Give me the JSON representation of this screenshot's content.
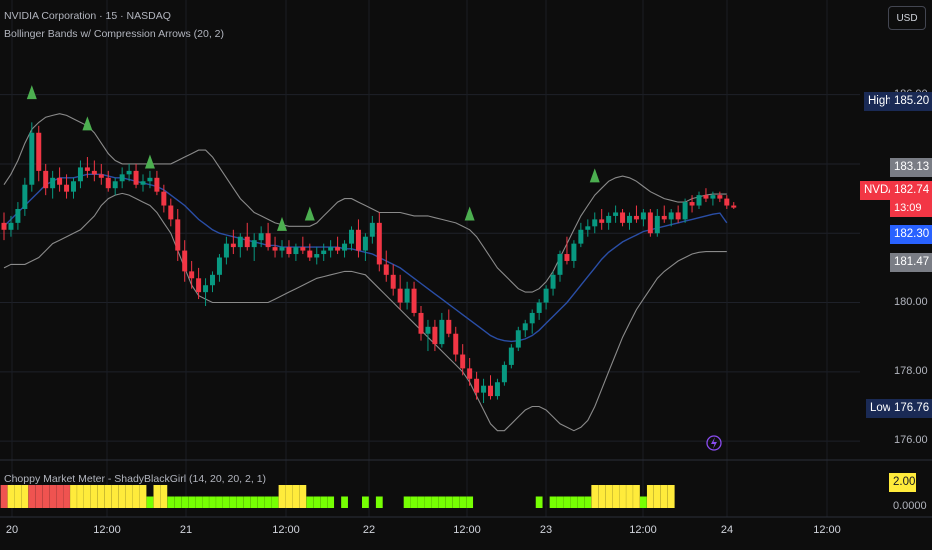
{
  "header": {
    "symbol_line": "NVIDIA Corporation · 15 · NASDAQ",
    "indicator_line": "Bollinger Bands w/ Compression Arrows (20, 2)",
    "currency": "USD",
    "subpane_title": "Choppy Market Meter - ShadyBlackGirl (14, 20, 20, 2, 1)"
  },
  "price_tags": {
    "high_label": "High",
    "high_value": "185.20",
    "low_label": "Low",
    "low_value": "176.76",
    "upper_band": "183.13",
    "symbol": "NVDA",
    "last_price": "182.74",
    "countdown": "13:09",
    "basis": "182.30",
    "lower_band": "181.47"
  },
  "subpane_value": "2.00",
  "subpane_zero": "0.0000",
  "colors": {
    "up": "#089981",
    "down": "#f23645",
    "basis": "#2a4ea6",
    "bands": "#8a8a8a",
    "arrow": "#4caf50",
    "chop_yellow": "#ffeb3b",
    "chop_green": "#76ff03",
    "chop_red": "#ef5350"
  },
  "chart_data": {
    "type": "candlestick",
    "y_axis": {
      "ticks": [
        "186.00",
        "184.00",
        "182.00",
        "180.00",
        "178.00",
        "176.00"
      ],
      "range": [
        175.6,
        187.0
      ]
    },
    "x_axis": {
      "ticks": [
        "20",
        "12:00",
        "21",
        "12:00",
        "22",
        "12:00",
        "23",
        "12:00",
        "24",
        "12:00"
      ]
    },
    "candles": [
      [
        182.3,
        182.6,
        181.8,
        182.1
      ],
      [
        182.1,
        182.5,
        181.9,
        182.3
      ],
      [
        182.3,
        182.9,
        182.1,
        182.7
      ],
      [
        182.7,
        183.6,
        182.5,
        183.4
      ],
      [
        183.4,
        185.2,
        183.2,
        184.9
      ],
      [
        184.9,
        185.1,
        183.5,
        183.8
      ],
      [
        183.8,
        184.0,
        183.1,
        183.3
      ],
      [
        183.3,
        183.8,
        183.0,
        183.6
      ],
      [
        183.6,
        183.9,
        183.2,
        183.4
      ],
      [
        183.4,
        183.7,
        183.0,
        183.2
      ],
      [
        183.2,
        183.6,
        183.0,
        183.5
      ],
      [
        183.5,
        184.1,
        183.3,
        183.9
      ],
      [
        183.9,
        184.2,
        183.6,
        183.8
      ],
      [
        183.8,
        184.1,
        183.5,
        183.7
      ],
      [
        183.7,
        184.0,
        183.4,
        183.6
      ],
      [
        183.6,
        183.8,
        183.2,
        183.3
      ],
      [
        183.3,
        183.6,
        183.1,
        183.5
      ],
      [
        183.5,
        183.9,
        183.3,
        183.7
      ],
      [
        183.7,
        184.0,
        183.5,
        183.8
      ],
      [
        183.8,
        184.0,
        183.3,
        183.4
      ],
      [
        183.4,
        183.7,
        183.2,
        183.5
      ],
      [
        183.5,
        183.8,
        183.3,
        183.6
      ],
      [
        183.6,
        183.8,
        183.1,
        183.2
      ],
      [
        183.2,
        183.4,
        182.6,
        182.8
      ],
      [
        182.8,
        183.0,
        182.2,
        182.4
      ],
      [
        182.4,
        182.7,
        181.2,
        181.5
      ],
      [
        181.5,
        181.8,
        180.6,
        180.9
      ],
      [
        180.9,
        181.2,
        180.4,
        180.7
      ],
      [
        180.7,
        181.0,
        180.1,
        180.3
      ],
      [
        180.3,
        180.7,
        179.9,
        180.5
      ],
      [
        180.5,
        180.9,
        180.3,
        180.8
      ],
      [
        180.8,
        181.4,
        180.6,
        181.3
      ],
      [
        181.3,
        181.9,
        181.1,
        181.7
      ],
      [
        181.7,
        182.1,
        181.4,
        181.6
      ],
      [
        181.6,
        182.0,
        181.3,
        181.9
      ],
      [
        181.9,
        182.3,
        181.5,
        181.6
      ],
      [
        181.6,
        182.0,
        181.2,
        181.8
      ],
      [
        181.8,
        182.2,
        181.6,
        182.0
      ],
      [
        182.0,
        182.3,
        181.5,
        181.6
      ],
      [
        181.6,
        181.9,
        181.3,
        181.5
      ],
      [
        181.5,
        181.8,
        181.3,
        181.6
      ],
      [
        181.6,
        181.8,
        181.3,
        181.4
      ],
      [
        181.4,
        181.7,
        181.2,
        181.6
      ],
      [
        181.6,
        181.9,
        181.4,
        181.5
      ],
      [
        181.5,
        181.7,
        181.2,
        181.3
      ],
      [
        181.3,
        181.6,
        181.1,
        181.4
      ],
      [
        181.4,
        181.7,
        181.2,
        181.5
      ],
      [
        181.5,
        181.8,
        181.3,
        181.6
      ],
      [
        181.6,
        181.9,
        181.4,
        181.5
      ],
      [
        181.5,
        181.8,
        181.3,
        181.7
      ],
      [
        181.7,
        182.2,
        181.5,
        182.1
      ],
      [
        182.1,
        182.4,
        181.3,
        181.5
      ],
      [
        181.5,
        182.0,
        181.2,
        181.9
      ],
      [
        181.9,
        182.5,
        181.7,
        182.3
      ],
      [
        182.3,
        182.6,
        180.9,
        181.1
      ],
      [
        181.1,
        181.5,
        180.6,
        180.8
      ],
      [
        180.8,
        181.1,
        180.2,
        180.4
      ],
      [
        180.4,
        180.8,
        179.8,
        180.0
      ],
      [
        180.0,
        180.6,
        179.8,
        180.4
      ],
      [
        180.4,
        180.6,
        179.6,
        179.7
      ],
      [
        179.7,
        179.9,
        178.9,
        179.1
      ],
      [
        179.1,
        179.5,
        178.6,
        179.3
      ],
      [
        179.3,
        179.5,
        178.6,
        178.8
      ],
      [
        178.8,
        179.7,
        178.7,
        179.5
      ],
      [
        179.5,
        179.8,
        179.0,
        179.1
      ],
      [
        179.1,
        179.3,
        178.3,
        178.5
      ],
      [
        178.5,
        178.8,
        177.9,
        178.1
      ],
      [
        178.1,
        178.4,
        177.6,
        177.8
      ],
      [
        177.8,
        178.0,
        177.2,
        177.4
      ],
      [
        177.4,
        177.8,
        177.1,
        177.6
      ],
      [
        177.6,
        177.9,
        177.2,
        177.3
      ],
      [
        177.3,
        177.8,
        177.2,
        177.7
      ],
      [
        177.7,
        178.3,
        177.6,
        178.2
      ],
      [
        178.2,
        178.8,
        178.1,
        178.7
      ],
      [
        178.7,
        179.3,
        178.6,
        179.2
      ],
      [
        179.2,
        179.5,
        179.0,
        179.4
      ],
      [
        179.4,
        179.8,
        179.1,
        179.7
      ],
      [
        179.7,
        180.1,
        179.5,
        180.0
      ],
      [
        180.0,
        180.5,
        179.8,
        180.4
      ],
      [
        180.4,
        180.9,
        180.2,
        180.8
      ],
      [
        180.8,
        181.5,
        180.6,
        181.4
      ],
      [
        181.4,
        181.9,
        181.1,
        181.2
      ],
      [
        181.2,
        181.8,
        181.0,
        181.7
      ],
      [
        181.7,
        182.3,
        181.6,
        182.1
      ],
      [
        182.1,
        182.4,
        181.9,
        182.2
      ],
      [
        182.2,
        182.6,
        182.0,
        182.4
      ],
      [
        182.4,
        182.7,
        182.1,
        182.3
      ],
      [
        182.3,
        182.6,
        182.1,
        182.5
      ],
      [
        182.5,
        182.8,
        182.3,
        182.6
      ],
      [
        182.6,
        182.7,
        182.2,
        182.3
      ],
      [
        182.3,
        182.6,
        182.1,
        182.5
      ],
      [
        182.5,
        182.8,
        182.3,
        182.4
      ],
      [
        182.4,
        182.7,
        182.2,
        182.6
      ],
      [
        182.6,
        182.7,
        181.9,
        182.0
      ],
      [
        182.0,
        182.7,
        181.9,
        182.5
      ],
      [
        182.5,
        182.8,
        182.3,
        182.4
      ],
      [
        182.4,
        182.7,
        182.2,
        182.6
      ],
      [
        182.6,
        182.8,
        182.3,
        182.4
      ],
      [
        182.4,
        183.0,
        182.3,
        182.9
      ],
      [
        182.9,
        183.1,
        182.6,
        182.8
      ],
      [
        182.8,
        183.2,
        182.7,
        183.1
      ],
      [
        183.1,
        183.3,
        182.9,
        183.0
      ],
      [
        183.0,
        183.2,
        182.8,
        183.1
      ],
      [
        183.1,
        183.2,
        182.9,
        183.0
      ],
      [
        183.0,
        183.1,
        182.7,
        182.8
      ],
      [
        182.8,
        182.9,
        182.7,
        182.74
      ]
    ],
    "basis": [
      182.2,
      182.4,
      182.6,
      182.8,
      183.0,
      183.2,
      183.4,
      183.5,
      183.6,
      183.6,
      183.6,
      183.65,
      183.7,
      183.7,
      183.7,
      183.65,
      183.6,
      183.6,
      183.55,
      183.5,
      183.45,
      183.4,
      183.35,
      183.25,
      183.1,
      182.95,
      182.8,
      182.6,
      182.4,
      182.25,
      182.1,
      182.0,
      181.95,
      181.9,
      181.85,
      181.8,
      181.75,
      181.7,
      181.65,
      181.65,
      181.6,
      181.6,
      181.6,
      181.6,
      181.6,
      181.6,
      181.6,
      181.6,
      181.6,
      181.55,
      181.55,
      181.5,
      181.45,
      181.4,
      181.3,
      181.2,
      181.1,
      181.0,
      180.85,
      180.7,
      180.55,
      180.4,
      180.25,
      180.1,
      179.95,
      179.8,
      179.65,
      179.5,
      179.35,
      179.2,
      179.05,
      178.95,
      178.9,
      178.88,
      178.9,
      178.95,
      179.05,
      179.2,
      179.4,
      179.6,
      179.8,
      180.0,
      180.25,
      180.5,
      180.75,
      181.0,
      181.25,
      181.45,
      181.6,
      181.75,
      181.85,
      181.95,
      182.05,
      182.1,
      182.15,
      182.2,
      182.25,
      182.3,
      182.35,
      182.4,
      182.45,
      182.5,
      182.55,
      182.58,
      182.3
    ],
    "upper_band": [
      183.4,
      183.7,
      184.1,
      184.6,
      185.0,
      185.2,
      185.35,
      185.4,
      185.45,
      185.4,
      185.3,
      185.2,
      185.1,
      184.9,
      184.6,
      184.3,
      184.1,
      184.0,
      184.0,
      184.0,
      184.0,
      184.0,
      184.0,
      184.0,
      184.0,
      184.1,
      184.2,
      184.3,
      184.4,
      184.4,
      184.2,
      183.9,
      183.6,
      183.3,
      183.0,
      182.8,
      182.6,
      182.5,
      182.4,
      182.3,
      182.25,
      182.2,
      182.2,
      182.2,
      182.2,
      182.3,
      182.5,
      182.7,
      182.9,
      183.0,
      183.0,
      182.9,
      182.8,
      182.7,
      182.6,
      182.6,
      182.6,
      182.6,
      182.55,
      182.5,
      182.5,
      182.5,
      182.45,
      182.4,
      182.35,
      182.3,
      182.2,
      182.1,
      181.9,
      181.6,
      181.3,
      181.0,
      180.8,
      180.6,
      180.4,
      180.3,
      180.3,
      180.4,
      180.6,
      180.9,
      181.3,
      181.7,
      182.1,
      182.5,
      182.8,
      183.1,
      183.3,
      183.5,
      183.6,
      183.65,
      183.6,
      183.5,
      183.35,
      183.2,
      183.1,
      183.0,
      182.95,
      182.9,
      182.9,
      183.0,
      183.05,
      183.1,
      183.13,
      183.13,
      183.13
    ],
    "lower_band": [
      181.0,
      181.1,
      181.1,
      181.1,
      181.2,
      181.3,
      181.5,
      181.7,
      181.8,
      181.9,
      182.0,
      182.1,
      182.3,
      182.5,
      182.8,
      183.0,
      183.1,
      183.15,
      183.1,
      183.0,
      182.9,
      182.8,
      182.6,
      182.3,
      182.0,
      181.5,
      181.0,
      180.5,
      180.2,
      180.1,
      180.0,
      180.0,
      180.0,
      180.0,
      180.0,
      180.0,
      180.0,
      180.0,
      180.0,
      180.1,
      180.2,
      180.3,
      180.4,
      180.5,
      180.6,
      180.7,
      180.75,
      180.8,
      180.85,
      180.9,
      180.9,
      180.85,
      180.8,
      180.6,
      180.4,
      180.2,
      180.0,
      179.8,
      179.6,
      179.4,
      179.2,
      179.0,
      178.8,
      178.6,
      178.4,
      178.2,
      178.0,
      177.7,
      177.3,
      176.9,
      176.5,
      176.3,
      176.3,
      176.5,
      176.7,
      176.9,
      177.0,
      177.0,
      176.9,
      176.7,
      176.5,
      176.4,
      176.3,
      176.4,
      176.6,
      177.0,
      177.5,
      178.0,
      178.5,
      179.0,
      179.4,
      179.8,
      180.1,
      180.4,
      180.7,
      180.9,
      181.05,
      181.2,
      181.3,
      181.4,
      181.45,
      181.47,
      181.47,
      181.47,
      181.47
    ],
    "compression_arrows": [
      {
        "index": 4,
        "value": 186.1
      },
      {
        "index": 12,
        "value": 185.2
      },
      {
        "index": 21,
        "value": 184.1
      },
      {
        "index": 40,
        "value": 182.3
      },
      {
        "index": 44,
        "value": 182.6
      },
      {
        "index": 67,
        "value": 182.6
      },
      {
        "index": 85,
        "value": 183.7
      }
    ],
    "choppy_meter": {
      "range": [
        0,
        2.0
      ],
      "bars": [
        [
          "r",
          2
        ],
        [
          "y",
          2
        ],
        [
          "y",
          2
        ],
        [
          "y",
          2
        ],
        [
          "r",
          2
        ],
        [
          "r",
          2
        ],
        [
          "r",
          2
        ],
        [
          "r",
          2
        ],
        [
          "r",
          2
        ],
        [
          "r",
          2
        ],
        [
          "y",
          2
        ],
        [
          "y",
          2
        ],
        [
          "y",
          2
        ],
        [
          "y",
          2
        ],
        [
          "y",
          2
        ],
        [
          "y",
          2
        ],
        [
          "y",
          2
        ],
        [
          "y",
          2
        ],
        [
          "y",
          2
        ],
        [
          "y",
          2
        ],
        [
          "y",
          2
        ],
        [
          "g",
          1
        ],
        [
          "y",
          2
        ],
        [
          "y",
          2
        ],
        [
          "g",
          1
        ],
        [
          "g",
          1
        ],
        [
          "g",
          1
        ],
        [
          "g",
          1
        ],
        [
          "g",
          1
        ],
        [
          "g",
          1
        ],
        [
          "g",
          1
        ],
        [
          "g",
          1
        ],
        [
          "g",
          1
        ],
        [
          "g",
          1
        ],
        [
          "g",
          1
        ],
        [
          "g",
          1
        ],
        [
          "g",
          1
        ],
        [
          "g",
          1
        ],
        [
          "g",
          1
        ],
        [
          "g",
          1
        ],
        [
          "y",
          2
        ],
        [
          "y",
          2
        ],
        [
          "y",
          2
        ],
        [
          "y",
          2
        ],
        [
          "g",
          1
        ],
        [
          "g",
          1
        ],
        [
          "g",
          1
        ],
        [
          "g",
          1
        ],
        [
          "n",
          0
        ],
        [
          "g",
          1
        ],
        [
          "n",
          0
        ],
        [
          "n",
          0
        ],
        [
          "g",
          1
        ],
        [
          "n",
          0
        ],
        [
          "g",
          1
        ],
        [
          "n",
          0
        ],
        [
          "n",
          0
        ],
        [
          "n",
          0
        ],
        [
          "g",
          1
        ],
        [
          "g",
          1
        ],
        [
          "g",
          1
        ],
        [
          "g",
          1
        ],
        [
          "g",
          1
        ],
        [
          "g",
          1
        ],
        [
          "g",
          1
        ],
        [
          "g",
          1
        ],
        [
          "g",
          1
        ],
        [
          "g",
          1
        ],
        [
          "n",
          0
        ],
        [
          "n",
          0
        ],
        [
          "n",
          0
        ],
        [
          "n",
          0
        ],
        [
          "n",
          0
        ],
        [
          "n",
          0
        ],
        [
          "n",
          0
        ],
        [
          "n",
          0
        ],
        [
          "n",
          0
        ],
        [
          "g",
          1
        ],
        [
          "n",
          0
        ],
        [
          "g",
          1
        ],
        [
          "g",
          1
        ],
        [
          "g",
          1
        ],
        [
          "g",
          1
        ],
        [
          "g",
          1
        ],
        [
          "g",
          1
        ],
        [
          "y",
          2
        ],
        [
          "y",
          2
        ],
        [
          "y",
          2
        ],
        [
          "y",
          2
        ],
        [
          "y",
          2
        ],
        [
          "y",
          2
        ],
        [
          "y",
          2
        ],
        [
          "g",
          1
        ],
        [
          "y",
          2
        ],
        [
          "y",
          2
        ],
        [
          "y",
          2
        ],
        [
          "y",
          2
        ],
        [
          "n",
          0
        ],
        [
          "n",
          0
        ],
        [
          "n",
          0
        ],
        [
          "n",
          0
        ],
        [
          "n",
          0
        ],
        [
          "n",
          0
        ],
        [
          "n",
          0
        ],
        [
          "n",
          0
        ]
      ]
    }
  }
}
